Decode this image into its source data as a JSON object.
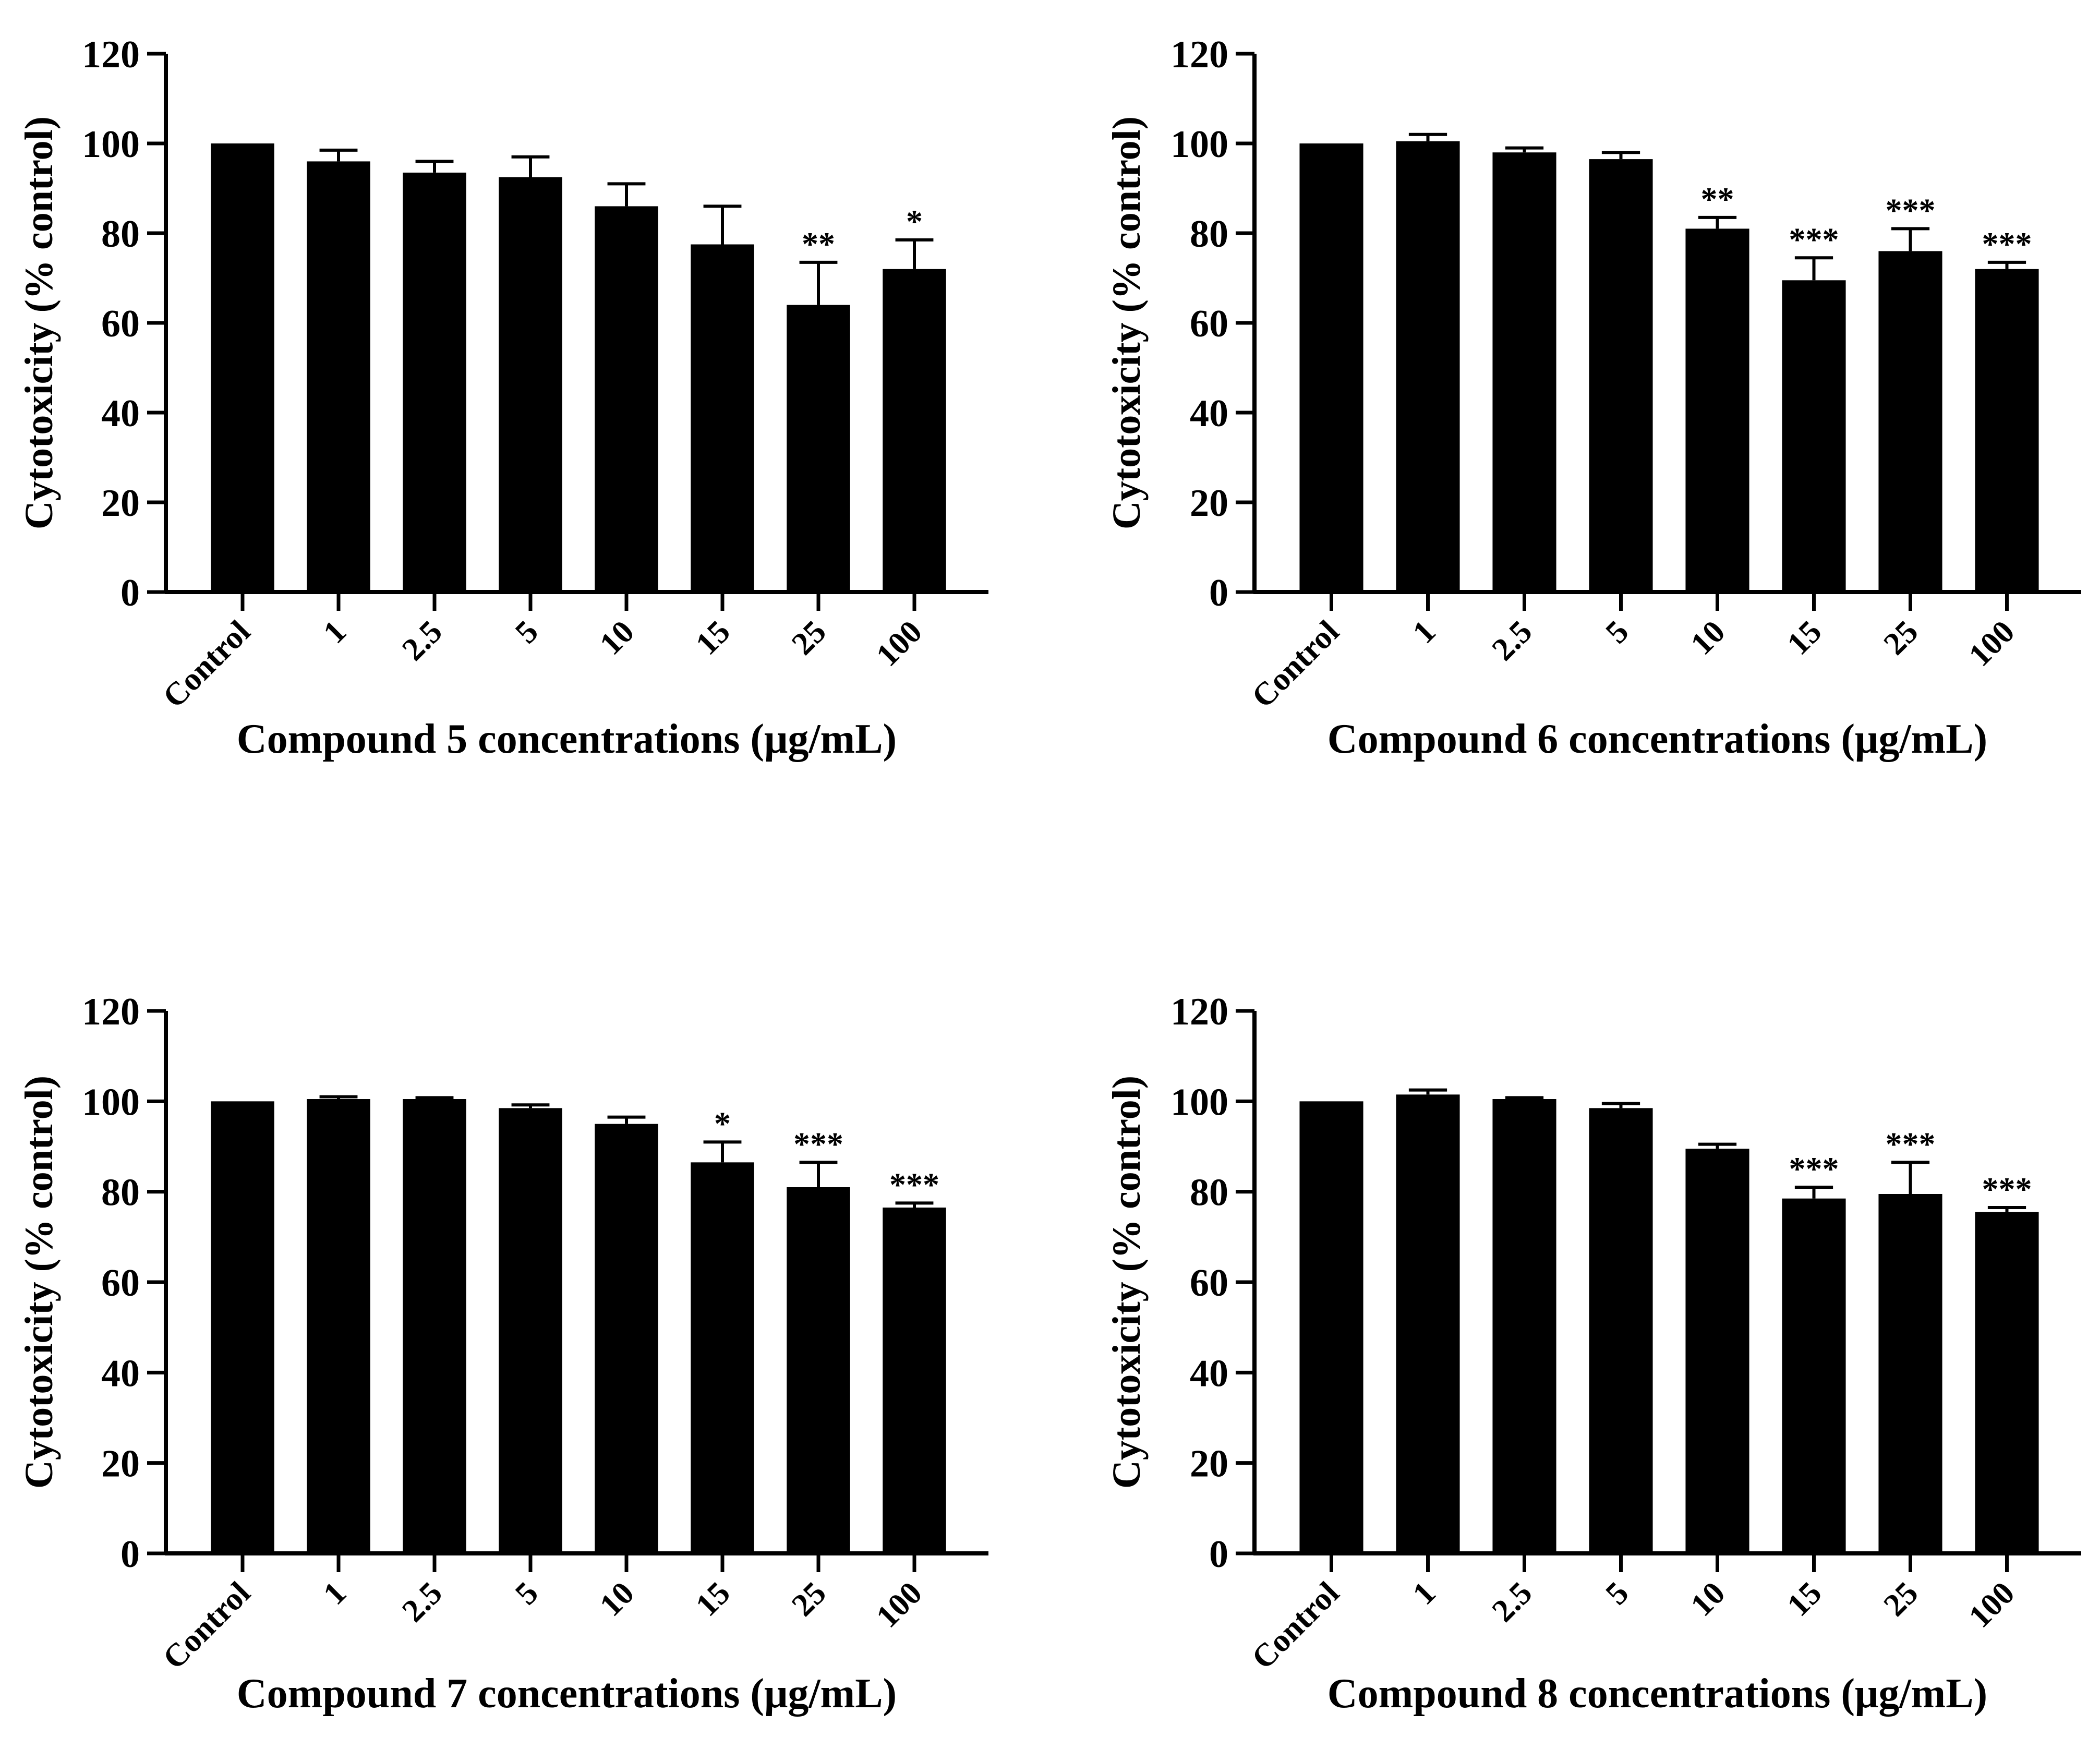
{
  "chart_data": [
    {
      "type": "bar",
      "xlabel": "Compound 5 concentrations (μg/mL)",
      "ylabel": "Cytotoxicity (% control)",
      "ylim": [
        0,
        120
      ],
      "yticks": [
        "0",
        "20",
        "40",
        "60",
        "80",
        "100",
        "120"
      ],
      "categories": [
        "Control",
        "1",
        "2.5",
        "5",
        "10",
        "15",
        "25",
        "100"
      ],
      "values": [
        100,
        96,
        93.5,
        92.5,
        86,
        77.5,
        64,
        72
      ],
      "errors": [
        0,
        2.5,
        2.5,
        4.5,
        5,
        8.5,
        9.5,
        6.5
      ],
      "significance": [
        "",
        "",
        "",
        "",
        "",
        "",
        "**",
        "*"
      ]
    },
    {
      "type": "bar",
      "xlabel": "Compound 6 concentrations (μg/mL)",
      "ylabel": "Cytotoxicity (% control)",
      "ylim": [
        0,
        120
      ],
      "yticks": [
        "0",
        "20",
        "40",
        "60",
        "80",
        "100",
        "120"
      ],
      "categories": [
        "Control",
        "1",
        "2.5",
        "5",
        "10",
        "15",
        "25",
        "100"
      ],
      "values": [
        100,
        100.5,
        98,
        96.5,
        81,
        69.5,
        76,
        72
      ],
      "errors": [
        0,
        1.5,
        1,
        1.5,
        2.5,
        5,
        5,
        1.5
      ],
      "significance": [
        "",
        "",
        "",
        "",
        "**",
        "***",
        "***",
        "***"
      ]
    },
    {
      "type": "bar",
      "xlabel": "Compound 7 concentrations (μg/mL)",
      "ylabel": "Cytotoxicity (% control)",
      "ylim": [
        0,
        120
      ],
      "yticks": [
        "0",
        "20",
        "40",
        "60",
        "80",
        "100",
        "120"
      ],
      "categories": [
        "Control",
        "1",
        "2.5",
        "5",
        "10",
        "15",
        "25",
        "100"
      ],
      "values": [
        100,
        100.5,
        100.5,
        98.5,
        95,
        86.5,
        81,
        76.5
      ],
      "errors": [
        0,
        0.5,
        0.3,
        0.7,
        1.5,
        4.5,
        5.5,
        1
      ],
      "significance": [
        "",
        "",
        "",
        "",
        "",
        "*",
        "***",
        "***"
      ]
    },
    {
      "type": "bar",
      "xlabel": "Compound 8 concentrations (μg/mL)",
      "ylabel": "Cytotoxicity (% control)",
      "ylim": [
        0,
        120
      ],
      "yticks": [
        "0",
        "20",
        "40",
        "60",
        "80",
        "100",
        "120"
      ],
      "categories": [
        "Control",
        "1",
        "2.5",
        "5",
        "10",
        "15",
        "25",
        "100"
      ],
      "values": [
        100,
        101.5,
        100.5,
        98.5,
        89.5,
        78.5,
        79.5,
        75.5
      ],
      "errors": [
        0,
        1,
        0.3,
        1,
        1,
        2.5,
        7,
        1
      ],
      "significance": [
        "",
        "",
        "",
        "",
        "",
        "***",
        "***",
        "***"
      ]
    }
  ],
  "colors": {
    "bar": "#000000",
    "axis": "#000000",
    "background": "#ffffff"
  }
}
